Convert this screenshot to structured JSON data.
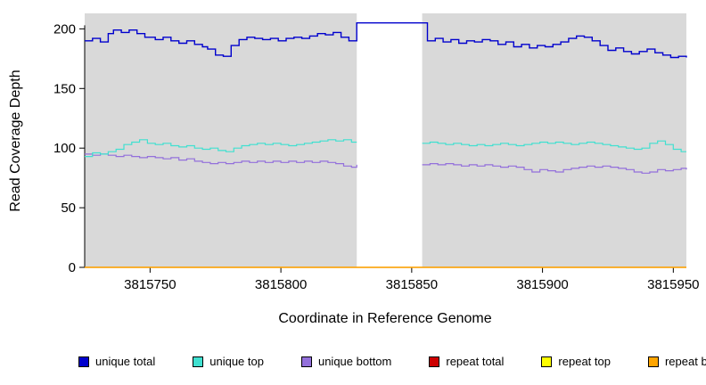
{
  "chart_data": {
    "type": "line",
    "title": "",
    "xlabel": "Coordinate in Reference Genome",
    "ylabel": "Read Coverage Depth",
    "xlim": [
      3815725,
      3815955
    ],
    "ylim": [
      0,
      213
    ],
    "x_ticks": [
      3815750,
      3815800,
      3815850,
      3815900,
      3815950
    ],
    "y_ticks": [
      0,
      50,
      100,
      150,
      200
    ],
    "grid": false,
    "plot_bg_color": "#d9d9d9",
    "masked_region": {
      "x0": 3815829,
      "x1": 3815854,
      "color": "#ffffff"
    },
    "legend_position": "bottom",
    "draw_order": [
      "repeat total",
      "repeat top",
      "repeat bottom",
      "unique bottom",
      "unique top",
      "unique total"
    ],
    "series": [
      {
        "name": "unique total",
        "color": "#0000cd",
        "width": 1.4,
        "segments": [
          [
            [
              3815725,
              190
            ],
            [
              3815728,
              192
            ],
            [
              3815731,
              189
            ],
            [
              3815734,
              196
            ],
            [
              3815736,
              199
            ],
            [
              3815739,
              197
            ],
            [
              3815742,
              199
            ],
            [
              3815745,
              196
            ],
            [
              3815748,
              193
            ],
            [
              3815752,
              191
            ],
            [
              3815755,
              193
            ],
            [
              3815758,
              190
            ],
            [
              3815761,
              188
            ],
            [
              3815764,
              190
            ],
            [
              3815767,
              187
            ],
            [
              3815770,
              185
            ],
            [
              3815772,
              183
            ],
            [
              3815775,
              178
            ],
            [
              3815778,
              177
            ],
            [
              3815781,
              186
            ],
            [
              3815784,
              191
            ],
            [
              3815787,
              193
            ],
            [
              3815790,
              192
            ],
            [
              3815793,
              191
            ],
            [
              3815796,
              192
            ],
            [
              3815799,
              190
            ],
            [
              3815802,
              192
            ],
            [
              3815805,
              193
            ],
            [
              3815808,
              192
            ],
            [
              3815811,
              194
            ],
            [
              3815814,
              196
            ],
            [
              3815817,
              195
            ],
            [
              3815820,
              197
            ],
            [
              3815823,
              193
            ],
            [
              3815826,
              190
            ],
            [
              3815829,
              205
            ],
            [
              3815854,
              205
            ],
            [
              3815856,
              190
            ],
            [
              3815859,
              192
            ],
            [
              3815862,
              189
            ],
            [
              3815865,
              191
            ],
            [
              3815868,
              188
            ],
            [
              3815871,
              190
            ],
            [
              3815874,
              189
            ],
            [
              3815877,
              191
            ],
            [
              3815880,
              190
            ],
            [
              3815883,
              187
            ],
            [
              3815886,
              189
            ],
            [
              3815889,
              185
            ],
            [
              3815892,
              187
            ],
            [
              3815895,
              184
            ],
            [
              3815898,
              186
            ],
            [
              3815901,
              185
            ],
            [
              3815904,
              187
            ],
            [
              3815907,
              189
            ],
            [
              3815910,
              192
            ],
            [
              3815913,
              194
            ],
            [
              3815916,
              193
            ],
            [
              3815919,
              190
            ],
            [
              3815922,
              186
            ],
            [
              3815925,
              182
            ],
            [
              3815928,
              184
            ],
            [
              3815931,
              181
            ],
            [
              3815934,
              179
            ],
            [
              3815937,
              181
            ],
            [
              3815940,
              183
            ],
            [
              3815943,
              180
            ],
            [
              3815946,
              178
            ],
            [
              3815949,
              176
            ],
            [
              3815952,
              177
            ],
            [
              3815955,
              176
            ]
          ]
        ]
      },
      {
        "name": "unique top",
        "color": "#40e0d0",
        "width": 1.2,
        "segments": [
          [
            [
              3815725,
              93
            ],
            [
              3815728,
              96
            ],
            [
              3815731,
              95
            ],
            [
              3815734,
              97
            ],
            [
              3815737,
              99
            ],
            [
              3815740,
              103
            ],
            [
              3815743,
              105
            ],
            [
              3815746,
              107
            ],
            [
              3815749,
              104
            ],
            [
              3815752,
              103
            ],
            [
              3815755,
              104
            ],
            [
              3815758,
              102
            ],
            [
              3815761,
              101
            ],
            [
              3815764,
              102
            ],
            [
              3815767,
              100
            ],
            [
              3815770,
              99
            ],
            [
              3815773,
              100
            ],
            [
              3815776,
              98
            ],
            [
              3815779,
              97
            ],
            [
              3815782,
              100
            ],
            [
              3815785,
              102
            ],
            [
              3815788,
              103
            ],
            [
              3815791,
              104
            ],
            [
              3815794,
              103
            ],
            [
              3815797,
              104
            ],
            [
              3815800,
              103
            ],
            [
              3815803,
              102
            ],
            [
              3815806,
              103
            ],
            [
              3815809,
              104
            ],
            [
              3815812,
              105
            ],
            [
              3815815,
              106
            ],
            [
              3815818,
              107
            ],
            [
              3815821,
              106
            ],
            [
              3815824,
              107
            ],
            [
              3815827,
              105
            ],
            [
              3815829,
              105
            ]
          ],
          [
            [
              3815854,
              104
            ],
            [
              3815857,
              105
            ],
            [
              3815860,
              104
            ],
            [
              3815863,
              103
            ],
            [
              3815866,
              104
            ],
            [
              3815869,
              103
            ],
            [
              3815872,
              102
            ],
            [
              3815875,
              103
            ],
            [
              3815878,
              102
            ],
            [
              3815881,
              103
            ],
            [
              3815884,
              104
            ],
            [
              3815887,
              103
            ],
            [
              3815890,
              102
            ],
            [
              3815893,
              103
            ],
            [
              3815896,
              104
            ],
            [
              3815899,
              105
            ],
            [
              3815902,
              104
            ],
            [
              3815905,
              105
            ],
            [
              3815908,
              104
            ],
            [
              3815911,
              103
            ],
            [
              3815914,
              104
            ],
            [
              3815917,
              105
            ],
            [
              3815920,
              104
            ],
            [
              3815923,
              103
            ],
            [
              3815926,
              102
            ],
            [
              3815929,
              101
            ],
            [
              3815932,
              100
            ],
            [
              3815935,
              99
            ],
            [
              3815938,
              100
            ],
            [
              3815941,
              104
            ],
            [
              3815944,
              106
            ],
            [
              3815947,
              103
            ],
            [
              3815950,
              99
            ],
            [
              3815953,
              97
            ],
            [
              3815955,
              97
            ]
          ]
        ]
      },
      {
        "name": "unique bottom",
        "color": "#9370db",
        "width": 1.2,
        "segments": [
          [
            [
              3815725,
              95
            ],
            [
              3815728,
              94
            ],
            [
              3815731,
              95
            ],
            [
              3815734,
              94
            ],
            [
              3815737,
              93
            ],
            [
              3815740,
              94
            ],
            [
              3815743,
              93
            ],
            [
              3815746,
              92
            ],
            [
              3815749,
              93
            ],
            [
              3815752,
              92
            ],
            [
              3815755,
              91
            ],
            [
              3815758,
              92
            ],
            [
              3815761,
              90
            ],
            [
              3815764,
              91
            ],
            [
              3815767,
              89
            ],
            [
              3815770,
              88
            ],
            [
              3815773,
              87
            ],
            [
              3815776,
              88
            ],
            [
              3815779,
              87
            ],
            [
              3815782,
              88
            ],
            [
              3815785,
              89
            ],
            [
              3815788,
              88
            ],
            [
              3815791,
              89
            ],
            [
              3815794,
              88
            ],
            [
              3815797,
              89
            ],
            [
              3815800,
              88
            ],
            [
              3815803,
              89
            ],
            [
              3815806,
              88
            ],
            [
              3815809,
              89
            ],
            [
              3815812,
              88
            ],
            [
              3815815,
              89
            ],
            [
              3815818,
              88
            ],
            [
              3815821,
              87
            ],
            [
              3815824,
              85
            ],
            [
              3815827,
              84
            ],
            [
              3815829,
              86
            ]
          ],
          [
            [
              3815854,
              86
            ],
            [
              3815857,
              87
            ],
            [
              3815860,
              86
            ],
            [
              3815863,
              87
            ],
            [
              3815866,
              86
            ],
            [
              3815869,
              85
            ],
            [
              3815872,
              86
            ],
            [
              3815875,
              85
            ],
            [
              3815878,
              86
            ],
            [
              3815881,
              85
            ],
            [
              3815884,
              84
            ],
            [
              3815887,
              85
            ],
            [
              3815890,
              84
            ],
            [
              3815893,
              82
            ],
            [
              3815896,
              80
            ],
            [
              3815899,
              82
            ],
            [
              3815902,
              81
            ],
            [
              3815905,
              80
            ],
            [
              3815908,
              82
            ],
            [
              3815911,
              83
            ],
            [
              3815914,
              84
            ],
            [
              3815917,
              85
            ],
            [
              3815920,
              84
            ],
            [
              3815923,
              85
            ],
            [
              3815926,
              84
            ],
            [
              3815929,
              83
            ],
            [
              3815932,
              82
            ],
            [
              3815935,
              80
            ],
            [
              3815938,
              79
            ],
            [
              3815941,
              80
            ],
            [
              3815944,
              82
            ],
            [
              3815947,
              81
            ],
            [
              3815950,
              82
            ],
            [
              3815953,
              83
            ],
            [
              3815955,
              82
            ]
          ]
        ]
      },
      {
        "name": "repeat total",
        "color": "#cd0000",
        "width": 1.2,
        "segments": [
          [
            [
              3815725,
              0
            ],
            [
              3815955,
              0
            ]
          ]
        ]
      },
      {
        "name": "repeat top",
        "color": "#ffff00",
        "width": 1.2,
        "segments": [
          [
            [
              3815725,
              0
            ],
            [
              3815955,
              0
            ]
          ]
        ]
      },
      {
        "name": "repeat bottom",
        "color": "#ffa500",
        "width": 1.2,
        "segments": [
          [
            [
              3815725,
              0
            ],
            [
              3815955,
              0
            ]
          ]
        ]
      }
    ]
  },
  "axes": {
    "x_title": "Coordinate in Reference Genome",
    "y_title": "Read Coverage Depth"
  }
}
